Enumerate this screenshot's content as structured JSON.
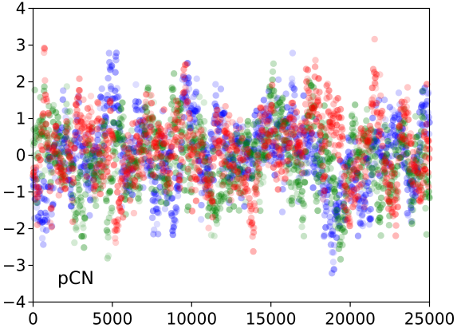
{
  "chart_data": {
    "type": "scatter",
    "title": "",
    "xlabel": "",
    "ylabel": "",
    "xlim": [
      0,
      25000
    ],
    "ylim": [
      -4,
      4
    ],
    "x_ticks": [
      0,
      5000,
      10000,
      15000,
      20000,
      25000
    ],
    "y_ticks": [
      -4,
      -3,
      -2,
      -1,
      0,
      1,
      2,
      3,
      4
    ],
    "x_tick_labels": [
      "0",
      "5000",
      "10000",
      "15000",
      "20000",
      "25000"
    ],
    "y_tick_labels": [
      "−4",
      "−3",
      "−2",
      "−1",
      "0",
      "1",
      "2",
      "3",
      "4"
    ],
    "grid": false,
    "legend": "none",
    "annotation": "pCN",
    "series": [
      {
        "color": "#0000ff",
        "points_per_series": 1200,
        "x": [
          0,
          600,
          1200,
          1800,
          2400,
          3000,
          3600,
          4200,
          4800,
          5400,
          6000,
          6600,
          7200,
          7800,
          8400,
          9000,
          9600,
          10200,
          10800,
          11400,
          12000,
          12600,
          13200,
          13800,
          14400,
          15000,
          15600,
          16200,
          16800,
          17400,
          18000,
          18600,
          19200,
          19800,
          20400,
          21000,
          21600,
          22200,
          22800,
          23400,
          24000,
          24600,
          25000
        ],
        "y": [
          -0.8,
          -1.5,
          -1.2,
          0.3,
          -0.4,
          0.5,
          -0.6,
          0.9,
          1.2,
          -0.3,
          -0.9,
          0.2,
          -0.5,
          -1.0,
          0.1,
          -1.6,
          0.6,
          0.4,
          -0.7,
          0.3,
          0.5,
          0.0,
          -0.4,
          0.2,
          0.4,
          0.9,
          0.7,
          0.3,
          0.5,
          0.2,
          0.6,
          -1.5,
          -2.0,
          -0.3,
          -0.1,
          -0.6,
          0.8,
          0.2,
          0.5,
          -0.4,
          0.1,
          0.6,
          0.3
        ]
      },
      {
        "color": "#008000",
        "points_per_series": 1200,
        "x": [
          0,
          600,
          1200,
          1800,
          2400,
          3000,
          3600,
          4200,
          4800,
          5400,
          6000,
          6600,
          7200,
          7800,
          8400,
          9000,
          9600,
          10200,
          10800,
          11400,
          12000,
          12600,
          13200,
          13800,
          14400,
          15000,
          15600,
          16200,
          16800,
          17400,
          18000,
          18600,
          19200,
          19800,
          20400,
          21000,
          21600,
          22200,
          22800,
          23400,
          24000,
          24600,
          25000
        ],
        "y": [
          0.4,
          -0.2,
          0.8,
          -0.5,
          0.2,
          -0.8,
          -0.3,
          0.3,
          -1.0,
          0.5,
          -0.2,
          -0.7,
          0.6,
          0.1,
          -0.6,
          0.9,
          0.4,
          -0.5,
          -0.2,
          -0.9,
          -0.4,
          0.3,
          -0.6,
          0.6,
          0.0,
          0.8,
          0.5,
          0.1,
          -0.3,
          0.4,
          0.2,
          -0.4,
          -1.2,
          -0.8,
          -0.2,
          0.3,
          -0.1,
          -0.5,
          -0.9,
          0.2,
          -0.6,
          0.1,
          -0.2
        ]
      },
      {
        "color": "#ff0000",
        "points_per_series": 1200,
        "x": [
          0,
          600,
          1200,
          1800,
          2400,
          3000,
          3600,
          4200,
          4800,
          5400,
          6000,
          6600,
          7200,
          7800,
          8400,
          9000,
          9600,
          10200,
          10800,
          11400,
          12000,
          12600,
          13200,
          13800,
          14400,
          15000,
          15600,
          16200,
          16800,
          17400,
          18000,
          18600,
          19200,
          19800,
          20400,
          21000,
          21600,
          22200,
          22800,
          23400,
          24000,
          24600,
          25000
        ],
        "y": [
          -0.3,
          0.2,
          -0.5,
          0.1,
          -0.2,
          1.8,
          0.3,
          -0.4,
          0.2,
          -0.6,
          0.5,
          -0.4,
          0.3,
          -0.2,
          -1.1,
          0.4,
          1.5,
          -0.6,
          0.2,
          -0.3,
          0.1,
          0.3,
          -0.2,
          -1.2,
          0.5,
          0.2,
          -0.3,
          0.6,
          0.2,
          0.9,
          0.8,
          0.1,
          0.0,
          -0.8,
          -0.5,
          0.5,
          1.3,
          -0.2,
          -0.6,
          0.4,
          0.3,
          -0.1,
          0.2
        ]
      }
    ]
  }
}
